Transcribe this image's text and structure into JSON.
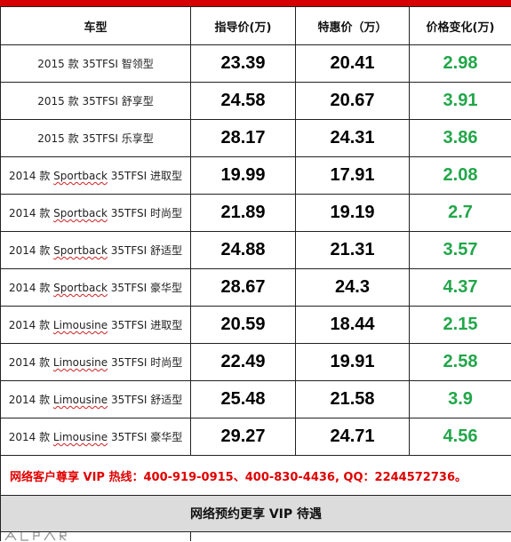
{
  "headers": {
    "model": "车型",
    "guide_price": "指导价(万)",
    "special_price": "特惠价（万）",
    "price_change": "价格变化(万)"
  },
  "rows": [
    {
      "year": "2015 款",
      "variant": "",
      "trim": "35TFSI  智领型",
      "guide": "23.39",
      "special": "20.41",
      "change": "2.98"
    },
    {
      "year": "2015 款",
      "variant": "",
      "trim": "35TFSI  舒享型",
      "guide": "24.58",
      "special": "20.67",
      "change": "3.91"
    },
    {
      "year": "2015 款",
      "variant": "",
      "trim": "35TFSI  乐享型",
      "guide": "28.17",
      "special": "24.31",
      "change": "3.86"
    },
    {
      "year": "2014 款",
      "variant": "Sportback",
      "trim": "35TFSI  进取型",
      "guide": "19.99",
      "special": "17.91",
      "change": "2.08"
    },
    {
      "year": "2014 款",
      "variant": "Sportback",
      "trim": "35TFSI  时尚型",
      "guide": "21.89",
      "special": "19.19",
      "change": "2.7"
    },
    {
      "year": "2014 款",
      "variant": "Sportback",
      "trim": "35TFSI  舒适型",
      "guide": "24.88",
      "special": "21.31",
      "change": "3.57"
    },
    {
      "year": "2014 款",
      "variant": "Sportback",
      "trim": "35TFSI  豪华型",
      "guide": "28.67",
      "special": "24.3",
      "change": "4.37"
    },
    {
      "year": "2014 款",
      "variant": "Limousine",
      "trim": "35TFSI  进取型",
      "guide": "20.59",
      "special": "18.44",
      "change": "2.15"
    },
    {
      "year": "2014 款",
      "variant": "Limousine",
      "trim": "35TFSI  时尚型",
      "guide": "22.49",
      "special": "19.91",
      "change": "2.58"
    },
    {
      "year": "2014 款",
      "variant": "Limousine",
      "trim": "35TFSI  舒适型",
      "guide": "25.48",
      "special": "21.58",
      "change": "3.9"
    },
    {
      "year": "2014 款",
      "variant": "Limousine",
      "trim": "35TFSI  豪华型",
      "guide": "29.27",
      "special": "24.71",
      "change": "4.56"
    }
  ],
  "hotline": "网络客户尊享 VIP 热线：400-919-0915、400-830-4436,      QQ：2244572736。",
  "vip_banner": "网络预约更享 VIP 待遇",
  "colors": {
    "header_bar": "#d40000",
    "hotline_text": "#e00000",
    "change_text": "#22a64a",
    "banner_bg": "#dcdcdc"
  }
}
